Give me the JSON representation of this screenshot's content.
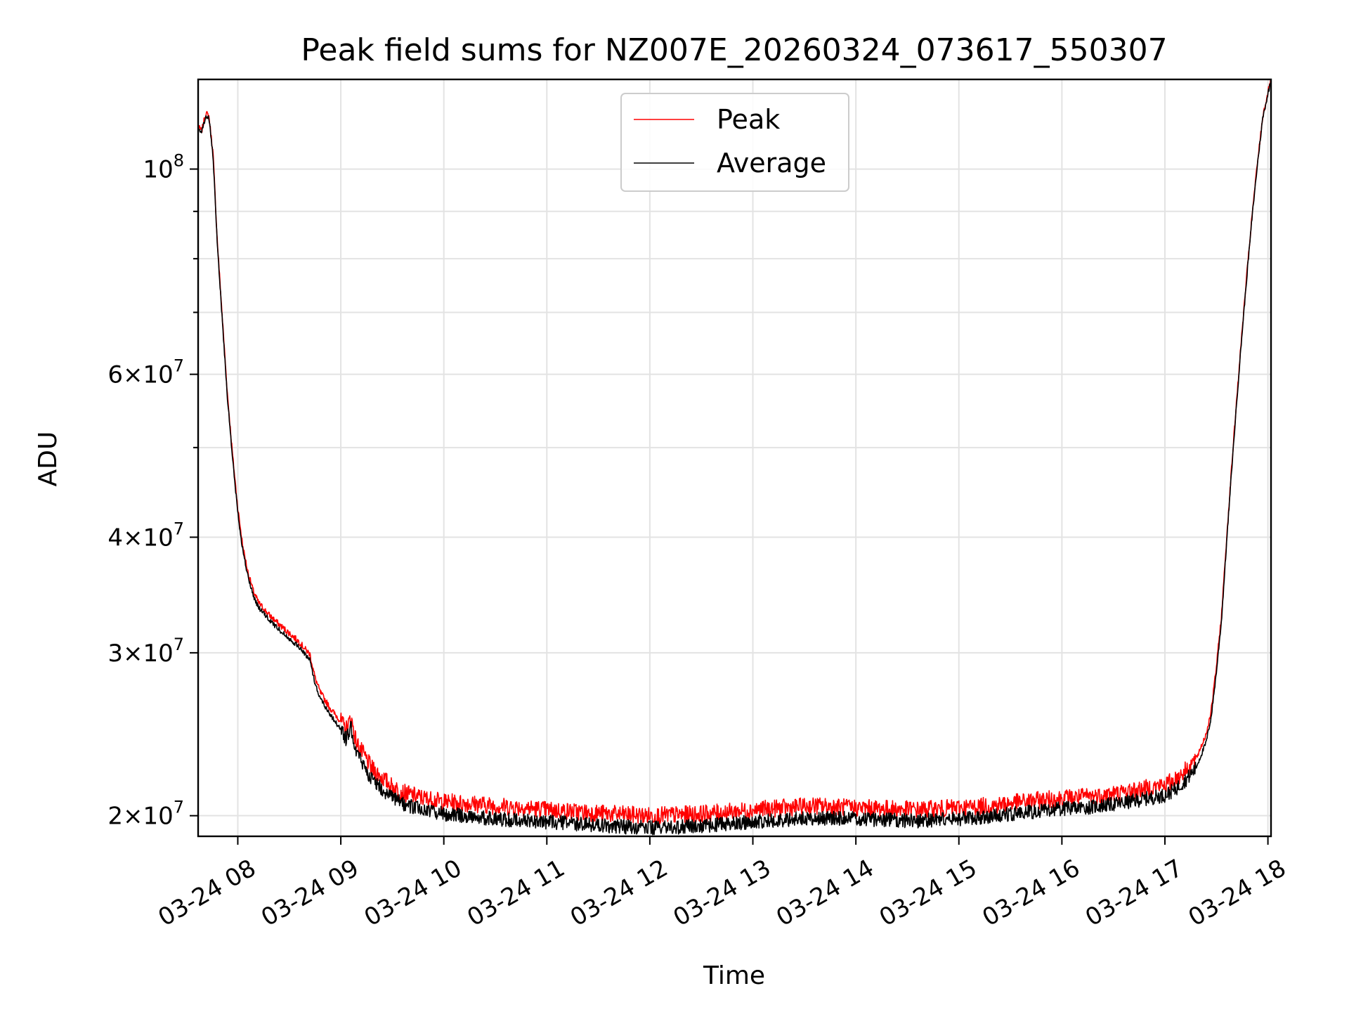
{
  "chart_data": {
    "type": "line",
    "title": "Peak field sums for NZ007E_20260324_073617_550307",
    "xlabel": "Time",
    "ylabel": "ADU",
    "yscale": "log",
    "ylim": [
      19000000,
      125000000
    ],
    "xlim_hours": [
      7.615,
      18.03
    ],
    "grid": true,
    "legend_position": "upper center",
    "x_ticks": [
      {
        "label": "03-24 08",
        "hour": 8
      },
      {
        "label": "03-24 09",
        "hour": 9
      },
      {
        "label": "03-24 10",
        "hour": 10
      },
      {
        "label": "03-24 11",
        "hour": 11
      },
      {
        "label": "03-24 12",
        "hour": 12
      },
      {
        "label": "03-24 13",
        "hour": 13
      },
      {
        "label": "03-24 14",
        "hour": 14
      },
      {
        "label": "03-24 15",
        "hour": 15
      },
      {
        "label": "03-24 16",
        "hour": 16
      },
      {
        "label": "03-24 17",
        "hour": 17
      },
      {
        "label": "03-24 18",
        "hour": 18
      }
    ],
    "y_ticks": [
      {
        "value": 20000000,
        "mantissa": "2",
        "exp": "7"
      },
      {
        "value": 30000000,
        "mantissa": "3",
        "exp": "7"
      },
      {
        "value": 40000000,
        "mantissa": "4",
        "exp": "7"
      },
      {
        "value": 60000000,
        "mantissa": "6",
        "exp": "7"
      },
      {
        "value": 100000000,
        "mantissa": "",
        "exp": "8"
      }
    ],
    "y_minor_ticks": [
      50000000,
      70000000,
      80000000,
      90000000
    ],
    "series": [
      {
        "name": "Peak",
        "color": "#ff0000",
        "noise": 0.022,
        "x_hours": [
          7.615,
          7.65,
          7.69,
          7.72,
          7.76,
          7.8,
          7.85,
          7.9,
          7.95,
          8.0,
          8.05,
          8.1,
          8.15,
          8.2,
          8.3,
          8.4,
          8.5,
          8.6,
          8.65,
          8.7,
          8.75,
          8.8,
          8.9,
          9.0,
          9.05,
          9.1,
          9.15,
          9.2,
          9.25,
          9.3,
          9.4,
          9.5,
          9.6,
          9.8,
          10.0,
          10.3,
          10.5,
          10.8,
          11.0,
          11.3,
          11.6,
          12.0,
          12.3,
          12.5,
          12.8,
          13.0,
          13.3,
          13.6,
          14.0,
          14.3,
          14.6,
          15.0,
          15.3,
          15.6,
          16.0,
          16.3,
          16.6,
          16.8,
          17.0,
          17.1,
          17.2,
          17.3,
          17.4,
          17.45,
          17.5,
          17.55,
          17.6,
          17.65,
          17.7,
          17.75,
          17.8,
          17.85,
          17.9,
          17.95,
          18.0,
          18.03
        ],
        "values": [
          111000000,
          110000000,
          115000000,
          114000000,
          104000000,
          84000000,
          69000000,
          57000000,
          49000000,
          43000000,
          39000000,
          36600000,
          35000000,
          34000000,
          33000000,
          32200000,
          31500000,
          30800000,
          30300000,
          29900000,
          28200000,
          27200000,
          26100000,
          25300000,
          24800000,
          25500000,
          24000000,
          23500000,
          23000000,
          22500000,
          22000000,
          21500000,
          21200000,
          20900000,
          20700000,
          20600000,
          20500000,
          20400000,
          20300000,
          20200000,
          20100000,
          20000000,
          20050000,
          20100000,
          20200000,
          20300000,
          20400000,
          20500000,
          20400000,
          20350000,
          20300000,
          20400000,
          20500000,
          20700000,
          20900000,
          21000000,
          21200000,
          21400000,
          21600000,
          21900000,
          22400000,
          23000000,
          24500000,
          26000000,
          29000000,
          33000000,
          40000000,
          48000000,
          57000000,
          67000000,
          78000000,
          90000000,
          102000000,
          114000000,
          121000000,
          125000000
        ]
      },
      {
        "name": "Average",
        "color": "#000000",
        "noise": 0.018,
        "x_hours": [
          7.615,
          7.65,
          7.69,
          7.72,
          7.76,
          7.8,
          7.85,
          7.9,
          7.95,
          8.0,
          8.05,
          8.1,
          8.15,
          8.2,
          8.3,
          8.4,
          8.5,
          8.6,
          8.65,
          8.7,
          8.75,
          8.8,
          8.9,
          9.0,
          9.05,
          9.1,
          9.15,
          9.2,
          9.25,
          9.3,
          9.4,
          9.5,
          9.6,
          9.8,
          10.0,
          10.3,
          10.5,
          10.8,
          11.0,
          11.3,
          11.6,
          12.0,
          12.3,
          12.5,
          12.8,
          13.0,
          13.3,
          13.6,
          14.0,
          14.3,
          14.6,
          15.0,
          15.3,
          15.6,
          16.0,
          16.3,
          16.6,
          16.8,
          17.0,
          17.1,
          17.2,
          17.3,
          17.4,
          17.45,
          17.5,
          17.55,
          17.6,
          17.65,
          17.7,
          17.75,
          17.8,
          17.85,
          17.9,
          17.95,
          18.0,
          18.03
        ],
        "values": [
          110500000,
          110000000,
          114000000,
          113500000,
          103000000,
          83500000,
          68500000,
          56500000,
          48500000,
          42500000,
          38600000,
          36200000,
          34600000,
          33600000,
          32600000,
          31800000,
          31100000,
          30400000,
          29900000,
          29500000,
          27800000,
          26800000,
          25700000,
          24800000,
          24200000,
          24900000,
          23500000,
          22900000,
          22400000,
          21900000,
          21400000,
          20900000,
          20600000,
          20300000,
          20100000,
          19950000,
          19850000,
          19750000,
          19700000,
          19600000,
          19500000,
          19400000,
          19450000,
          19500000,
          19600000,
          19700000,
          19800000,
          19900000,
          19850000,
          19800000,
          19750000,
          19850000,
          19950000,
          20150000,
          20350000,
          20450000,
          20650000,
          20850000,
          21050000,
          21350000,
          21850000,
          22500000,
          24000000,
          25600000,
          28600000,
          32600000,
          39600000,
          47600000,
          56600000,
          66600000,
          77600000,
          89600000,
          101600000,
          113600000,
          120600000,
          124800000
        ]
      }
    ]
  }
}
